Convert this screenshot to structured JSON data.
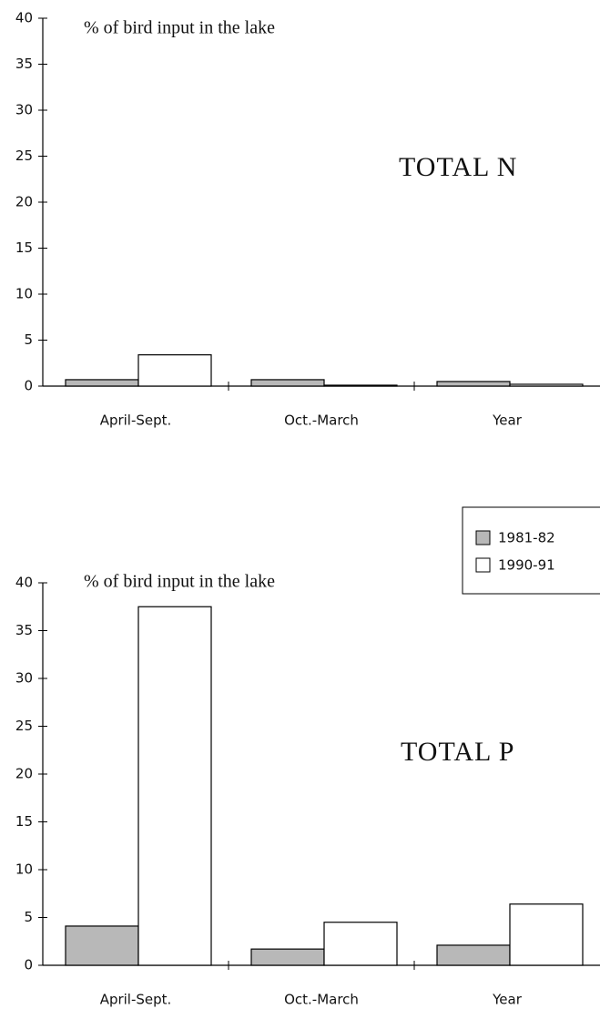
{
  "chart_data": [
    {
      "type": "bar",
      "ylabel": "% of bird input in the lake",
      "annotation": "TOTAL N",
      "categories": [
        "April-Sept.",
        "Oct.-March",
        "Year"
      ],
      "series": [
        {
          "name": "1981-82",
          "color": "#b8b8b8",
          "values": [
            0.7,
            0.7,
            0.5
          ]
        },
        {
          "name": "1990-91",
          "color": "#ffffff",
          "values": [
            3.4,
            0.1,
            0.2
          ]
        }
      ],
      "ylim": [
        0,
        40
      ],
      "yticks": [
        0,
        5,
        10,
        15,
        20,
        25,
        30,
        35,
        40
      ]
    },
    {
      "type": "bar",
      "ylabel": "% of bird input in the lake",
      "annotation": "TOTAL P",
      "categories": [
        "April-Sept.",
        "Oct.-March",
        "Year"
      ],
      "series": [
        {
          "name": "1981-82",
          "color": "#b8b8b8",
          "values": [
            4.1,
            1.7,
            2.1
          ]
        },
        {
          "name": "1990-91",
          "color": "#ffffff",
          "values": [
            37.5,
            4.5,
            6.4
          ]
        }
      ],
      "ylim": [
        0,
        40
      ],
      "yticks": [
        0,
        5,
        10,
        15,
        20,
        25,
        30,
        35,
        40
      ],
      "legend": "top-right"
    }
  ]
}
